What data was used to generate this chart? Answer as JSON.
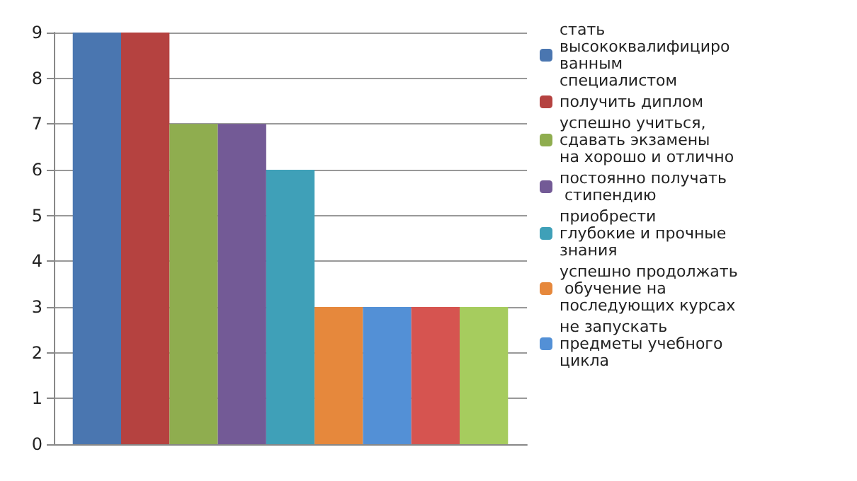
{
  "chart_data": {
    "type": "bar",
    "categories": [
      null
    ],
    "series": [
      {
        "name": "стать высококвалифицированным специалистом",
        "color": "#4a76b0",
        "values": [
          9
        ]
      },
      {
        "name": "получить диплом",
        "color": "#b54240",
        "values": [
          9
        ]
      },
      {
        "name": "успешно учиться, сдавать экзамены на хорошо и отлично",
        "color": "#8fad4f",
        "values": [
          7
        ]
      },
      {
        "name": "постоянно получать стипендию",
        "color": "#735a96",
        "values": [
          7
        ]
      },
      {
        "name": "приобрести глубокие и прочные знания",
        "color": "#3fa0b8",
        "values": [
          6
        ]
      },
      {
        "name": "успешно продолжать обучение на последующих курсах",
        "color": "#e6883c",
        "values": [
          3
        ]
      },
      {
        "name": "не запускать предметы учебного цикла",
        "color": "#5390d6",
        "values": [
          3
        ]
      },
      {
        "color": "#d65450",
        "values": [
          3
        ]
      },
      {
        "color": "#a6cc5e",
        "values": [
          3
        ]
      }
    ],
    "ylim": [
      0,
      9
    ],
    "yticks": [
      0,
      1,
      2,
      3,
      4,
      5,
      6,
      7,
      8,
      9
    ],
    "grid": "y",
    "legend": "right"
  }
}
